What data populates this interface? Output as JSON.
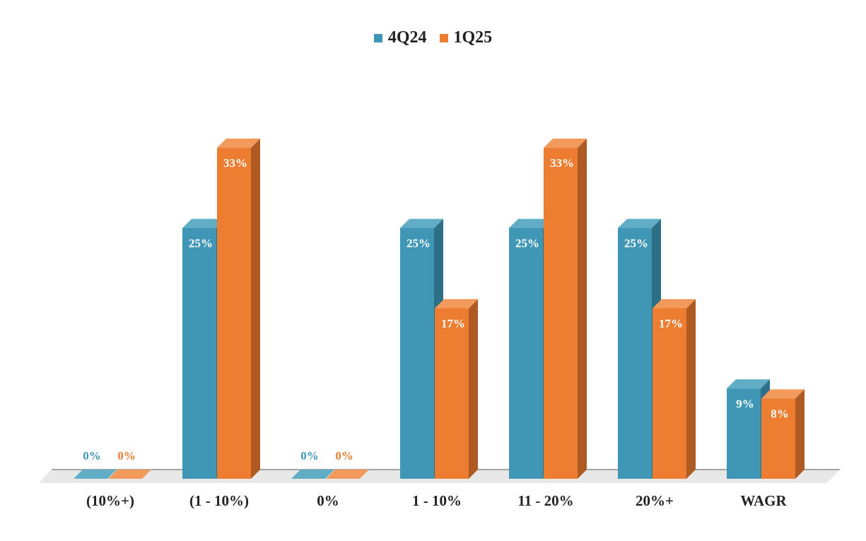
{
  "colors": {
    "series1_front": "#3f97b5",
    "series1_top": "#62adc6",
    "series1_side": "#2c6f86",
    "series2_front": "#ed7d31",
    "series2_top": "#f19a5b",
    "series2_side": "#ae5a22",
    "floor": "#e8e8e8",
    "text": "#222222"
  },
  "chart_data": {
    "type": "bar",
    "categories": [
      "(10%+)",
      "(1 - 10%)",
      "0%",
      "1 - 10%",
      "11 - 20%",
      "20%+",
      "WAGR"
    ],
    "series": [
      {
        "name": "4Q24",
        "values": [
          0,
          25,
          0,
          25,
          25,
          25,
          9
        ],
        "labels": [
          "0%",
          "25%",
          "0%",
          "25%",
          "25%",
          "25%",
          "9%"
        ]
      },
      {
        "name": "1Q25",
        "values": [
          0,
          33,
          0,
          17,
          33,
          17,
          8
        ],
        "labels": [
          "0%",
          "33%",
          "0%",
          "17%",
          "33%",
          "17%",
          "8%"
        ]
      }
    ],
    "legend_position": "top-center",
    "grid": false,
    "ylim": [
      0,
      40
    ]
  }
}
